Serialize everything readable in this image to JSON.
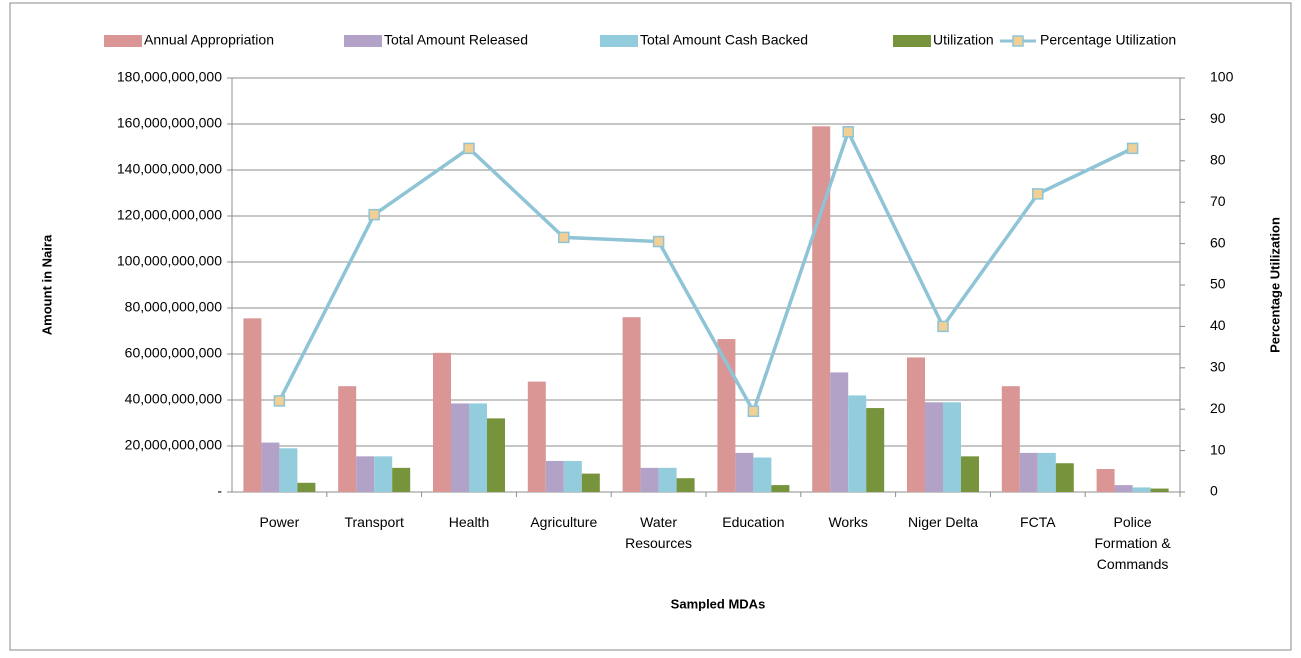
{
  "chart_data": {
    "type": "bar",
    "x_label": "Sampled MDAs",
    "y_label": "Amount in Naira",
    "y2_label": "Percentage Utilization",
    "categories": [
      "Power",
      "Transport",
      "Health",
      "Agriculture",
      "Water Resources",
      "Education",
      "Works",
      "Niger Delta",
      "FCTA",
      "Police Formation & Commands"
    ],
    "series": [
      {
        "name": "Annual Appropriation",
        "color": "#d99694",
        "values": [
          75500000000,
          46000000000,
          60500000000,
          48000000000,
          76000000000,
          66500000000,
          159000000000,
          58500000000,
          46000000000,
          10000000000
        ]
      },
      {
        "name": "Total Amount Released",
        "color": "#b3a2c7",
        "values": [
          21500000000,
          15500000000,
          38500000000,
          13500000000,
          10500000000,
          17000000000,
          52000000000,
          39000000000,
          17000000000,
          3000000000
        ]
      },
      {
        "name": "Total Amount Cash Backed",
        "color": "#93cddd",
        "values": [
          19000000000,
          15500000000,
          38500000000,
          13500000000,
          10500000000,
          15000000000,
          42000000000,
          39000000000,
          17000000000,
          2000000000
        ]
      },
      {
        "name": "Utilization",
        "color": "#77933c",
        "values": [
          4000000000,
          10500000000,
          32000000000,
          8000000000,
          6000000000,
          3000000000,
          36500000000,
          15500000000,
          12500000000,
          1500000000
        ]
      },
      {
        "name": "Percentage Utilization",
        "color": "#8fc4d6",
        "marker_color": "#f2cf95",
        "type": "line",
        "axis": "y2",
        "values": [
          22,
          67,
          83,
          61.5,
          60.5,
          19.5,
          87,
          40,
          72,
          83
        ]
      }
    ],
    "ylim": [
      0,
      180000000000
    ],
    "yticks": [
      {
        "value": 0,
        "label": "-"
      },
      {
        "value": 20000000000,
        "label": "20,000,000,000"
      },
      {
        "value": 40000000000,
        "label": "40,000,000,000"
      },
      {
        "value": 60000000000,
        "label": "60,000,000,000"
      },
      {
        "value": 80000000000,
        "label": "80,000,000,000"
      },
      {
        "value": 100000000000,
        "label": "100,000,000,000"
      },
      {
        "value": 120000000000,
        "label": "120,000,000,000"
      },
      {
        "value": 140000000000,
        "label": "140,000,000,000"
      },
      {
        "value": 160000000000,
        "label": "160,000,000,000"
      },
      {
        "value": 180000000000,
        "label": "180,000,000,000"
      }
    ],
    "y2lim": [
      0,
      100
    ],
    "y2ticks": [
      0,
      10,
      20,
      30,
      40,
      50,
      60,
      70,
      80,
      90,
      100
    ],
    "grid": true,
    "legend": "top"
  }
}
